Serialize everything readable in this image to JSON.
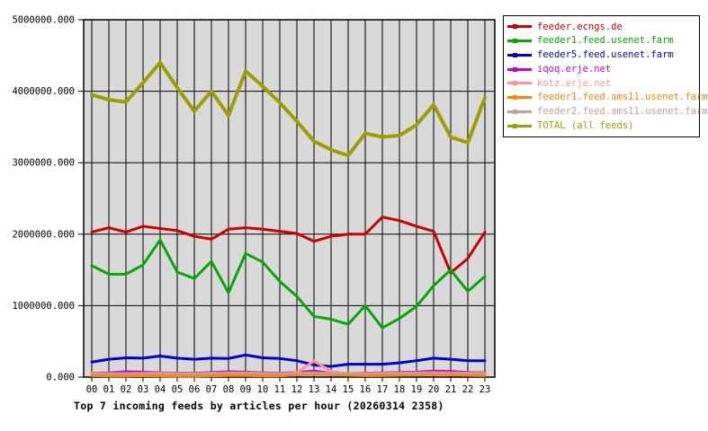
{
  "chart_data": {
    "type": "line",
    "title": "Top 7 incoming feeds by articles per hour (20260314 2358)",
    "xlabel": "",
    "ylabel": "",
    "ylim": [
      0,
      5000000
    ],
    "grid": true,
    "legend_position": "top-right",
    "plot_bg_color": "#d9d9d9",
    "y_tick_labels": [
      "0.000",
      "1000000.000",
      "2000000.000",
      "3000000.000",
      "4000000.000",
      "5000000.000"
    ],
    "x_categories": [
      "00",
      "01",
      "02",
      "03",
      "04",
      "05",
      "06",
      "07",
      "08",
      "09",
      "10",
      "11",
      "12",
      "13",
      "14",
      "15",
      "16",
      "17",
      "18",
      "19",
      "20",
      "21",
      "22",
      "23"
    ],
    "series": [
      {
        "name": "feeder.ecngs.de",
        "color": "#cc0000",
        "values": [
          2030000,
          2090000,
          2030000,
          2110000,
          2080000,
          2050000,
          1970000,
          1930000,
          2070000,
          2090000,
          2070000,
          2040000,
          2010000,
          1900000,
          1970000,
          2000000,
          2000000,
          2240000,
          2190000,
          2110000,
          2040000,
          1460000,
          1660000,
          2030000
        ]
      },
      {
        "name": "feeder1.feed.usenet.farm",
        "color": "#00aa00",
        "values": [
          1560000,
          1440000,
          1440000,
          1570000,
          1920000,
          1470000,
          1380000,
          1620000,
          1180000,
          1730000,
          1610000,
          1340000,
          1130000,
          850000,
          810000,
          740000,
          1000000,
          690000,
          820000,
          990000,
          1280000,
          1500000,
          1200000,
          1410000
        ]
      },
      {
        "name": "feeder5.feed.usenet.farm",
        "color": "#0000cc",
        "values": [
          210000,
          250000,
          270000,
          265000,
          295000,
          265000,
          250000,
          265000,
          260000,
          310000,
          270000,
          260000,
          230000,
          170000,
          150000,
          180000,
          180000,
          180000,
          200000,
          230000,
          265000,
          250000,
          230000,
          230000
        ]
      },
      {
        "name": "iqoq.erje.net",
        "color": "#cc00cc",
        "values": [
          55000,
          60000,
          75000,
          70000,
          60000,
          55000,
          55000,
          65000,
          75000,
          70000,
          60000,
          55000,
          65000,
          85000,
          55000,
          50000,
          55000,
          60000,
          65000,
          70000,
          85000,
          80000,
          65000,
          60000
        ]
      },
      {
        "name": "kotz.erje.net",
        "color": "#ff9494",
        "values": [
          30000,
          30000,
          30000,
          30000,
          30000,
          30000,
          30000,
          30000,
          35000,
          35000,
          30000,
          30000,
          65000,
          225000,
          85000,
          30000,
          30000,
          30000,
          30000,
          30000,
          35000,
          35000,
          30000,
          30000
        ]
      },
      {
        "name": "feeder1.feed.ams11.usenet.farm",
        "color": "#ff8400",
        "values": [
          20000,
          15000,
          15000,
          20000,
          15000,
          12000,
          12000,
          18000,
          22000,
          22000,
          18000,
          18000,
          30000,
          40000,
          35000,
          25000,
          20000,
          20000,
          25000,
          35000,
          40000,
          35000,
          25000,
          20000
        ]
      },
      {
        "name": "feeder2.feed.ams11.usenet.farm",
        "color": "#cc9999",
        "values": [
          55000,
          50000,
          50000,
          55000,
          55000,
          50000,
          50000,
          55000,
          60000,
          60000,
          55000,
          50000,
          55000,
          60000,
          55000,
          50000,
          50000,
          55000,
          55000,
          60000,
          65000,
          60000,
          55000,
          55000
        ]
      },
      {
        "name": "TOTAL (all feeds)",
        "color": "#9e9e00",
        "values": [
          3950000,
          3880000,
          3850000,
          4120000,
          4400000,
          4050000,
          3720000,
          4000000,
          3660000,
          4280000,
          4070000,
          3840000,
          3580000,
          3300000,
          3180000,
          3100000,
          3410000,
          3360000,
          3380000,
          3530000,
          3810000,
          3360000,
          3280000,
          3910000
        ]
      }
    ]
  }
}
